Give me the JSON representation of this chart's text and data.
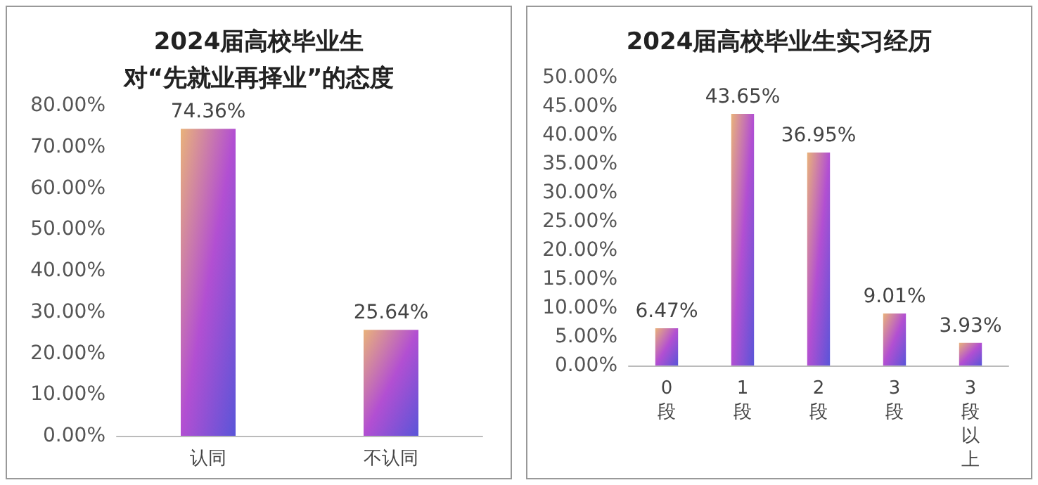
{
  "chart_data": [
    {
      "type": "bar",
      "title": "2024届高校毕业生",
      "subtitle": "对“先就业再择业”的态度",
      "categories": [
        "认同",
        "不认同"
      ],
      "values": [
        74.36,
        25.64
      ],
      "value_labels": [
        "74.36%",
        "25.64%"
      ],
      "color": "#b24fd2",
      "ylim": [
        0,
        80
      ],
      "yticks": [
        {
          "value": 0,
          "label": "0.00%"
        },
        {
          "value": 10,
          "label": "10.00%"
        },
        {
          "value": 20,
          "label": "20.00%"
        },
        {
          "value": 30,
          "label": "30.00%"
        },
        {
          "value": 40,
          "label": "40.00%"
        },
        {
          "value": 50,
          "label": "50.00%"
        },
        {
          "value": 60,
          "label": "60.00%"
        },
        {
          "value": 70,
          "label": "70.00%"
        },
        {
          "value": 80,
          "label": "80.00%"
        }
      ],
      "grid": false
    },
    {
      "type": "bar",
      "title": "2024届高校毕业生实习经历",
      "categories": [
        "0段",
        "1段",
        "2段",
        "3段",
        "3段以上"
      ],
      "values": [
        6.47,
        43.65,
        36.95,
        9.01,
        3.93
      ],
      "value_labels": [
        "6.47%",
        "43.65%",
        "36.95%",
        "9.01%",
        "3.93%"
      ],
      "color": "#b24fd2",
      "ylim": [
        0,
        50
      ],
      "yticks": [
        {
          "value": 0,
          "label": "0.00%"
        },
        {
          "value": 5,
          "label": "5.00%"
        },
        {
          "value": 10,
          "label": "10.00%"
        },
        {
          "value": 15,
          "label": "15.00%"
        },
        {
          "value": 20,
          "label": "20.00%"
        },
        {
          "value": 25,
          "label": "25.00%"
        },
        {
          "value": 30,
          "label": "30.00%"
        },
        {
          "value": 35,
          "label": "35.00%"
        },
        {
          "value": 40,
          "label": "40.00%"
        },
        {
          "value": 45,
          "label": "45.00%"
        },
        {
          "value": 50,
          "label": "50.00%"
        }
      ],
      "grid": false
    }
  ]
}
